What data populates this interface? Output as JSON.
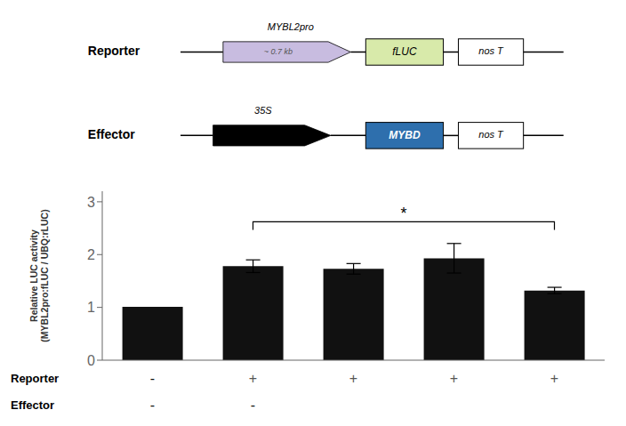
{
  "chart_data": {
    "type": "bar",
    "categories": [
      null,
      null,
      null,
      null,
      null
    ],
    "values": [
      1.01,
      1.78,
      1.73,
      1.93,
      1.32
    ],
    "errors": [
      0.0,
      0.12,
      0.1,
      0.28,
      0.06
    ],
    "color": "#111111",
    "ylabel": "Relative LUC activity\n(MYBL2pro:fLUC / UBQ:rLUC)",
    "ylim": [
      0,
      3.2
    ],
    "yticks": [
      0,
      1,
      2,
      3
    ],
    "grid": false,
    "legend": "none",
    "significance": {
      "from": 1,
      "to": 4,
      "y": 2.62,
      "label": "*"
    },
    "reporter_row": {
      "label": "Reporter",
      "values": [
        "-",
        "+",
        "+",
        "+",
        "+"
      ]
    },
    "effector_row": {
      "label": "Effector",
      "values": [
        "-",
        "-",
        null,
        null,
        null
      ]
    },
    "diagram": {
      "reporter_label": "Reporter",
      "effector_label": "Effector",
      "mybl2pro_label": "MYBL2pro",
      "35s_label": "35S",
      "approx07kb_label": "~ 0.7 kb",
      "fluc_label": "fLUC",
      "mybd_label": "MYBD",
      "nost_label": "nos T"
    }
  }
}
